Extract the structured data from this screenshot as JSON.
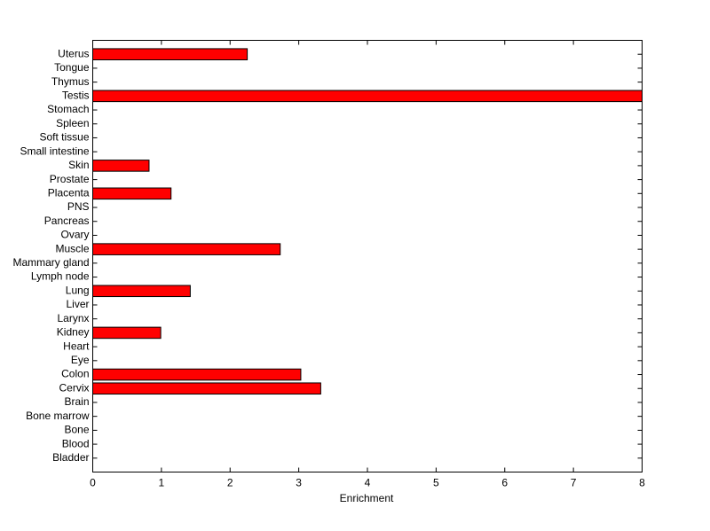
{
  "chart_data": {
    "type": "barh",
    "x_label": "Enrichment",
    "categories": [
      "Bladder",
      "Blood",
      "Bone",
      "Bone marrow",
      "Brain",
      "Cervix",
      "Colon",
      "Eye",
      "Heart",
      "Kidney",
      "Larynx",
      "Liver",
      "Lung",
      "Lymph node",
      "Mammary gland",
      "Muscle",
      "Ovary",
      "Pancreas",
      "PNS",
      "Placenta",
      "Prostate",
      "Skin",
      "Small intestine",
      "Soft tissue",
      "Spleen",
      "Stomach",
      "Testis",
      "Thymus",
      "Tongue",
      "Uterus"
    ],
    "values": [
      0,
      0,
      0,
      0,
      0,
      3.32,
      3.03,
      0,
      0,
      0.99,
      0,
      0,
      1.42,
      0,
      0,
      2.73,
      0,
      0,
      0,
      1.14,
      0,
      0.82,
      0,
      0,
      0,
      0,
      8,
      0,
      0,
      2.25
    ],
    "color": "#ff0000",
    "xlim": [
      0,
      8
    ],
    "xticks": [
      0,
      1,
      2,
      3,
      4,
      5,
      6,
      7,
      8
    ]
  }
}
